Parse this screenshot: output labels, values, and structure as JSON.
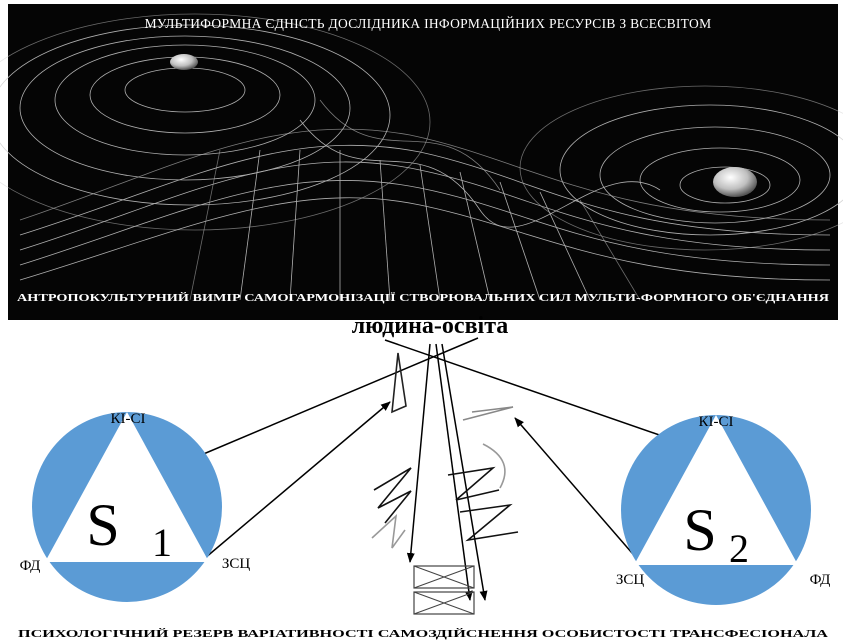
{
  "banner": {
    "top_title": "МУЛЬТИФОРМНА ЄДНІСТЬ ДОСЛІДНИКА ІНФОРМАЦІЙНИХ РЕСУРСІВ З ВСЕСВІТОМ",
    "bottom_title": "АНТРОПОКУЛЬТУРНИЙ ВИМІР САМОГАРМОНІЗАЦІЇ СТВОРЮВАЛЬНИХ СИЛ МУЛЬТИ-ФОРМНОГО ОБ'ЄДНАННЯ",
    "background_color": "#000000",
    "line_color": "#d9d9d9"
  },
  "center_node": {
    "label": "людина-освіта"
  },
  "left_system": {
    "symbol": "S",
    "subscript": "1",
    "top_label": "КІ-СІ",
    "left_label": "ФД",
    "right_label": "ЗСЦ",
    "circle_color": "#5b9bd5"
  },
  "right_system": {
    "symbol": "S",
    "subscript": "2",
    "top_label": "КІ-СІ",
    "left_label": "ЗСЦ",
    "right_label": "ФД",
    "circle_color": "#5b9bd5"
  },
  "footer": {
    "caption": "ПСИХОЛОГІЧНИЙ РЕЗЕРВ ВАРІАТИВНОСТІ САМОЗДІЙСНЕННЯ ОСОБИСТОСТІ ТРАНСФЕСІОНАЛА"
  },
  "colors": {
    "arrow": "#000000",
    "text": "#000000",
    "banner_text": "#ffffff"
  }
}
